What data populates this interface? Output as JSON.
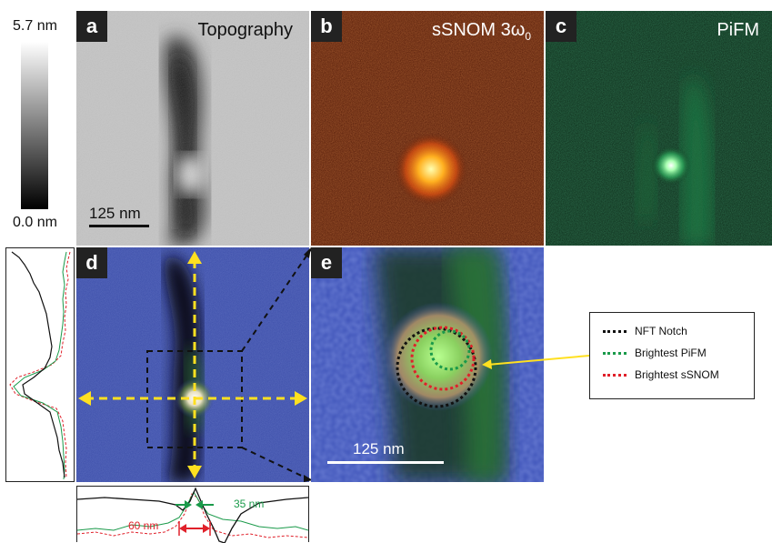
{
  "colorbar": {
    "max_label": "5.7 nm",
    "min_label": "0.0 nm"
  },
  "panels": {
    "a": {
      "tag": "a",
      "title": "Topography",
      "scalebar": "125 nm"
    },
    "b": {
      "tag": "b",
      "title": "sSNOM 3ω",
      "title_sub": "0"
    },
    "c": {
      "tag": "c",
      "title": "PiFM"
    },
    "d": {
      "tag": "d"
    },
    "e": {
      "tag": "e",
      "scalebar": "125 nm"
    }
  },
  "profile": {
    "label_60": "60 nm",
    "label_35": "35 nm"
  },
  "legend": {
    "items": [
      {
        "label": "NFT Notch",
        "color": "#111111"
      },
      {
        "label": "Brightest PiFM",
        "color": "#1a9a4a"
      },
      {
        "label": "Brightest sSNOM",
        "color": "#e0202a"
      }
    ]
  }
}
